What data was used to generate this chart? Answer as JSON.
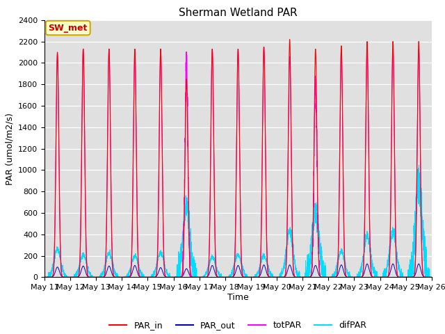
{
  "title": "Sherman Wetland PAR",
  "ylabel": "PAR (umol/m2/s)",
  "xlabel": "Time",
  "annotation": "SW_met",
  "ylim": [
    0,
    2400
  ],
  "n_days": 15,
  "tick_labels": [
    "May 11",
    "May 12",
    "May 13",
    "May 14",
    "May 15",
    "May 16",
    "May 17",
    "May 18",
    "May 19",
    "May 20",
    "May 21",
    "May 22",
    "May 23",
    "May 24",
    "May 25",
    "May 26"
  ],
  "colors": {
    "PAR_in": "#ff0000",
    "PAR_out": "#0000bb",
    "totPAR": "#ff00ff",
    "difPAR": "#00ddff"
  },
  "background_color": "#e0e0e0",
  "fig_width": 6.4,
  "fig_height": 4.8,
  "title_fontsize": 11,
  "label_fontsize": 9,
  "tick_fontsize": 8
}
